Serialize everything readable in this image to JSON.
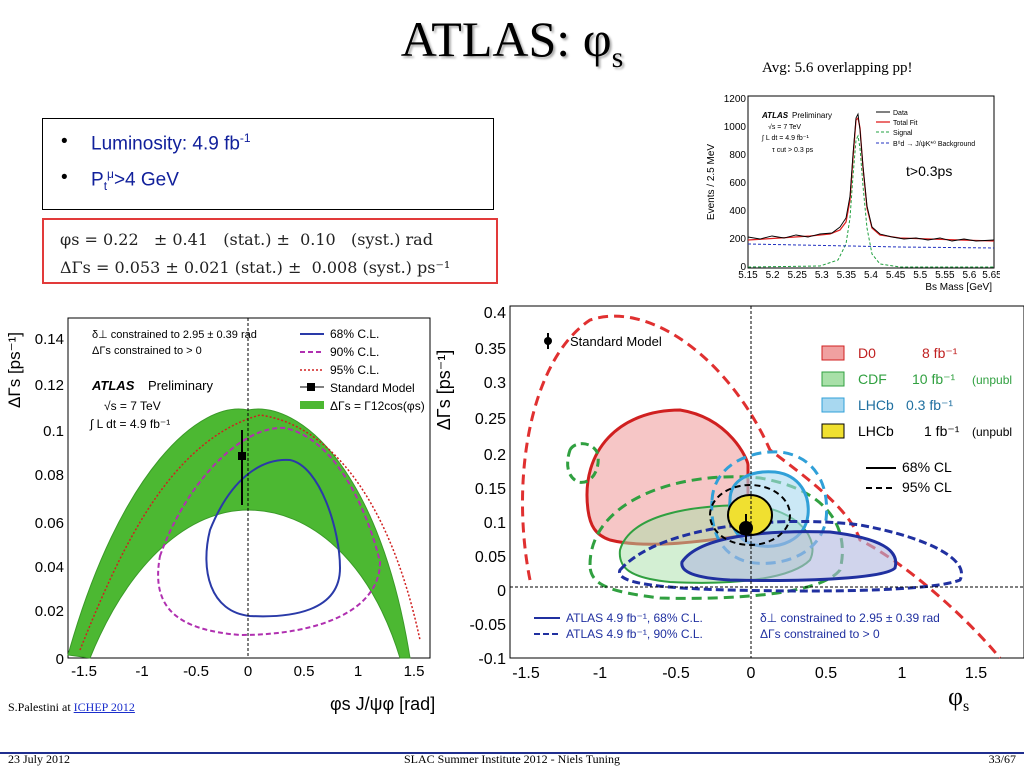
{
  "title": {
    "main": "ATLAS: φ",
    "sub": "s"
  },
  "avg_note": "Avg: 5.6 overlapping pp!",
  "bullets": [
    {
      "text": "Luminosity: 4.9 fb",
      "sup": "-1"
    },
    {
      "text": "P",
      "sub": "t",
      "sup": "μ",
      "rest": ">4 GeV"
    }
  ],
  "results": [
    "φs = 0.22   ± 0.41   (stat.) ±  0.10   (syst.) rad",
    "ΔΓs = 0.053 ± 0.021 (stat.) ±  0.008 (syst.) ps⁻¹"
  ],
  "mass_plot": {
    "ylabel": "Events / 2.5 MeV",
    "xlabel": "Bs Mass [GeV]",
    "yticks": [
      "0",
      "200",
      "400",
      "600",
      "800",
      "1000",
      "1200"
    ],
    "xticks": [
      "5.15",
      "5.2",
      "5.25",
      "5.3",
      "5.35",
      "5.4",
      "5.45",
      "5.5",
      "5.55",
      "5.6",
      "5.65"
    ],
    "atlas": "ATLAS",
    "preliminary": "Preliminary",
    "sqrt_s": "√s = 7 TeV",
    "lumi": "∫ L dt = 4.9 fb⁻¹",
    "cut": "τ cut > 0.3 ps",
    "legend": [
      "Data",
      "Total Fit",
      "Signal",
      "B⁰d → J/ψK*⁰ Background"
    ],
    "note": "t>0.3ps",
    "colors": {
      "data": "#000000",
      "fit": "#e02020",
      "signal": "#22a040",
      "bkg": "#2030c0"
    }
  },
  "left_plot": {
    "ylabel": "ΔΓs [ps⁻¹]",
    "xlabel": "φs J/ψφ [rad]",
    "yticks": [
      "0",
      "0.02",
      "0.04",
      "0.06",
      "0.08",
      "0.1",
      "0.12",
      "0.14"
    ],
    "xticks": [
      "-1.5",
      "-1",
      "-0.5",
      "0",
      "0.5",
      "1",
      "1.5"
    ],
    "constraint1": "δ⊥ constrained to 2.95 ± 0.39 rad",
    "constraint2": "ΔΓs constrained to > 0",
    "atlas": "ATLAS",
    "preliminary": "Preliminary",
    "sqrt_s": "√s = 7 TeV",
    "lumi": "∫ L dt = 4.9 fb⁻¹",
    "legend": [
      "68% C.L.",
      "90% C.L.",
      "95% C.L.",
      "Standard Model",
      "ΔΓs = Γ12cos(φs)"
    ],
    "colors": {
      "c68": "#2a3aa8",
      "c90": "#b030b0",
      "c95": "#d02020",
      "band": "#4cb832"
    }
  },
  "right_plot": {
    "ylabel": "ΔΓs [ps⁻¹]",
    "yticks": [
      "-0.1",
      "-0.05",
      "0",
      "0.05",
      "0.1",
      "0.15",
      "0.2",
      "0.25",
      "0.3",
      "0.35",
      "0.4"
    ],
    "xticks": [
      "-1.5",
      "-1",
      "-0.5",
      "0",
      "0.5",
      "1",
      "1.5"
    ],
    "sm": "Standard Model",
    "legend": [
      {
        "exp": "D0",
        "lumi": "8 fb⁻¹",
        "note": "",
        "color": "#f0a0a0",
        "edge": "#d02020"
      },
      {
        "exp": "CDF",
        "lumi": "10 fb⁻¹",
        "note": "(unpubl",
        "color": "#a8e0a8",
        "edge": "#30a040"
      },
      {
        "exp": "LHCb",
        "lumi": "0.3 fb⁻¹",
        "note": "",
        "color": "#a8d8f0",
        "edge": "#30a0d8"
      },
      {
        "exp": "LHCb",
        "lumi": "1 fb⁻¹",
        "note": "(unpubl",
        "color": "#f0e030",
        "edge": "#000000"
      }
    ],
    "cl68": "68% CL",
    "cl95": "95% CL",
    "atlas68": "ATLAS 4.9 fb⁻¹, 68% C.L.",
    "atlas90": "ATLAS 4.9 fb⁻¹, 90% C.L.",
    "constraint1": "δ⊥ constrained to 2.95 ± 0.39 rad",
    "constraint2": "ΔΓs constrained to > 0"
  },
  "phis_label": {
    "main": "φ",
    "sub": "s"
  },
  "credit": {
    "prefix": "S.Palestini at ",
    "link": "ICHEP 2012"
  },
  "footer": {
    "date": "23 July 2012",
    "center": "SLAC Summer Institute 2012 - Niels Tuning",
    "page": "33/67"
  }
}
